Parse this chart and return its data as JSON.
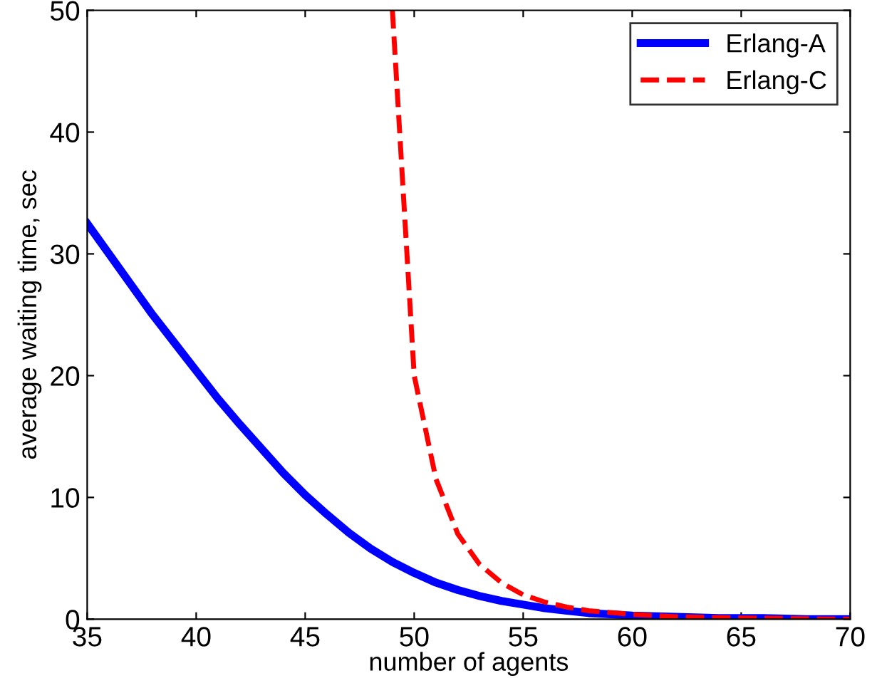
{
  "chart_data": {
    "type": "line",
    "xlabel": "number of agents",
    "ylabel": "average waiting time, sec",
    "xlim": [
      35,
      70
    ],
    "ylim": [
      0,
      50
    ],
    "xticks": [
      35,
      40,
      45,
      50,
      55,
      60,
      65,
      70
    ],
    "yticks": [
      0,
      10,
      20,
      30,
      40,
      50
    ],
    "grid": false,
    "legend": "top right",
    "series": [
      {
        "name": "Erlang-A",
        "color": "#0000ff",
        "line_style": "solid",
        "x": [
          35,
          36,
          37,
          38,
          39,
          40,
          41,
          42,
          43,
          44,
          45,
          46,
          47,
          48,
          49,
          50,
          51,
          52,
          53,
          54,
          55,
          56,
          57,
          58,
          59,
          60,
          62,
          64,
          66,
          68,
          70
        ],
        "values": [
          32.5,
          30,
          27.5,
          25,
          22.7,
          20.4,
          18.1,
          16,
          14,
          12,
          10.2,
          8.6,
          7.1,
          5.8,
          4.7,
          3.8,
          3.0,
          2.4,
          1.9,
          1.5,
          1.2,
          0.9,
          0.7,
          0.5,
          0.4,
          0.3,
          0.2,
          0.1,
          0.1,
          0,
          0
        ]
      },
      {
        "name": "Erlang-C",
        "color": "#ff0000",
        "line_style": "dashed",
        "x": [
          49,
          50,
          51,
          52,
          53,
          54,
          55,
          56,
          57,
          58,
          60,
          62,
          65,
          70
        ],
        "values": [
          50,
          20,
          11.5,
          7,
          4.5,
          3,
          2,
          1.4,
          1.0,
          0.7,
          0.4,
          0.2,
          0.1,
          0
        ]
      }
    ]
  }
}
